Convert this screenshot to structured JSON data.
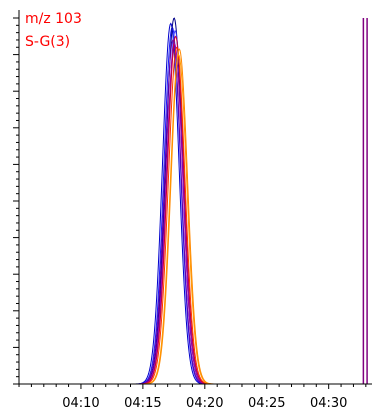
{
  "chart_data": {
    "type": "line",
    "annotations": [
      "m/z 103",
      "S-G(3)"
    ],
    "annotation_color": "#ff0000",
    "x_tick_labels": [
      "04:10",
      "04:15",
      "04:20",
      "04:25",
      "04:30"
    ],
    "x_tick_values": [
      4.1667,
      4.25,
      4.3333,
      4.4167,
      4.5
    ],
    "xlim": [
      4.0833,
      4.5583
    ],
    "ylim": [
      0,
      1.0
    ],
    "yaxis_tick_labels_shown": false,
    "grid": false,
    "series": [
      {
        "color": "#0000cc",
        "center": 4.2875,
        "amplitude": 0.985,
        "sigma": 0.0112
      },
      {
        "color": "#1a1aff",
        "center": 4.2895,
        "amplitude": 0.975,
        "sigma": 0.0112
      },
      {
        "color": "#000088",
        "center": 4.292,
        "amplitude": 1.0,
        "sigma": 0.0112
      },
      {
        "color": "#3333ff",
        "center": 4.2935,
        "amplitude": 0.965,
        "sigma": 0.0112
      },
      {
        "color": "#6600aa",
        "center": 4.2905,
        "amplitude": 0.94,
        "sigma": 0.0112
      },
      {
        "color": "#aa00aa",
        "center": 4.2925,
        "amplitude": 0.93,
        "sigma": 0.0112
      },
      {
        "color": "#cc0033",
        "center": 4.294,
        "amplitude": 0.95,
        "sigma": 0.0112
      },
      {
        "color": "#ff3300",
        "center": 4.2955,
        "amplitude": 0.92,
        "sigma": 0.0112
      },
      {
        "color": "#ff8800",
        "center": 4.299,
        "amplitude": 0.915,
        "sigma": 0.0112
      },
      {
        "color": "#ff9900",
        "center": 4.298,
        "amplitude": 0.9,
        "sigma": 0.0112
      }
    ],
    "vertical_markers": [
      {
        "x": 4.5467,
        "color": "#800080"
      },
      {
        "x": 4.5517,
        "color": "#800080"
      }
    ]
  }
}
